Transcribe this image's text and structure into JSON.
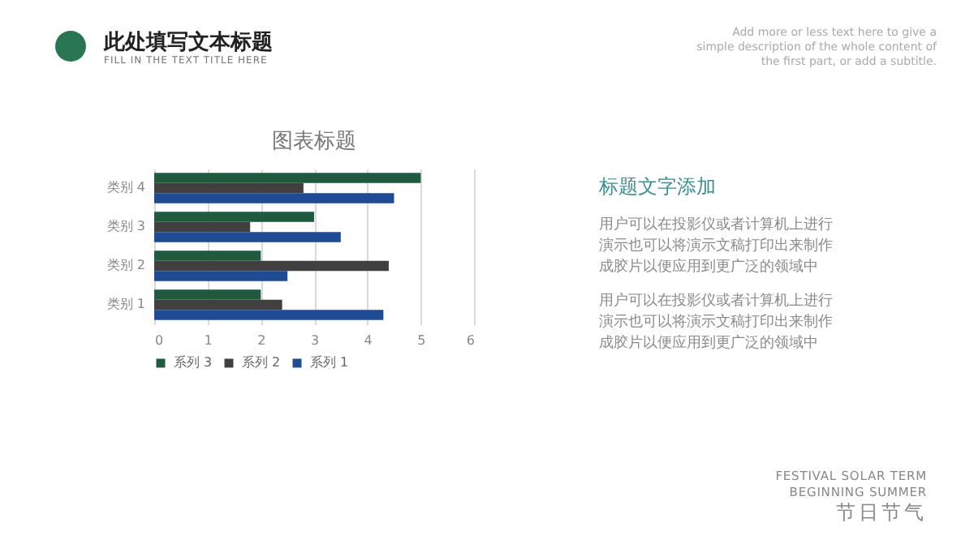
{
  "chart_data": {
    "type": "bar",
    "orientation": "horizontal",
    "title": "图表标题",
    "categories": [
      "类别 4",
      "类别 3",
      "类别 2",
      "类别 1"
    ],
    "series": [
      {
        "name": "系列 3",
        "color": "#1e5a3e",
        "values": [
          5,
          3,
          2,
          2
        ]
      },
      {
        "name": "系列 2",
        "color": "#404040",
        "values": [
          2.8,
          1.8,
          4.4,
          2.4
        ]
      },
      {
        "name": "系列 1",
        "color": "#1f4a94",
        "values": [
          4.5,
          3.5,
          2.5,
          4.3
        ]
      }
    ],
    "xlim": [
      0,
      6
    ],
    "xticks": [
      0,
      1,
      2,
      3,
      4,
      5,
      6
    ],
    "grid": "x",
    "legend": "bottom",
    "annotations": [
      "此处填写文本标题",
      "FILL IN THE TEXT TITLE HERE",
      "Add more or less text here to give a simple description of the whole content of the first part, or add a subtitle.",
      "标题文字添加",
      "用户可以在投影仪或者计算机上进行演示也可以将演示文稿打印出来制作成胶片以便应用到更广泛的领域中",
      "用户可以在投影仪或者计算机上进行演示也可以将演示文稿打印出来制作成胶片以便应用到更广泛的领域中",
      "FESTIVAL SOLAR TERM",
      "BEGINNING SUMMER",
      "节日节气"
    ]
  }
}
